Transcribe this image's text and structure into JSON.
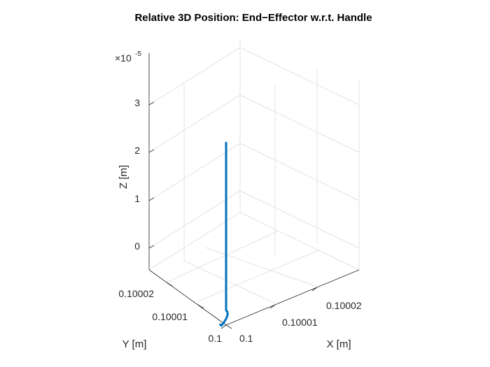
{
  "chart_data": {
    "type": "line3d",
    "title": "Relative 3D Position: End−Effector w.r.t. Handle",
    "xlabel": "X [m]",
    "ylabel": "Y [m]",
    "zlabel": "Z [m]",
    "x_ticks": [
      "0.1",
      "0.10001",
      "0.10002"
    ],
    "y_ticks": [
      "0.1",
      "0.10001",
      "0.10002"
    ],
    "z_ticks": [
      "0",
      "1",
      "2",
      "3"
    ],
    "z_exponent_base": "×10",
    "z_exponent_power": "-5",
    "grid": true,
    "series": [
      {
        "color": "#0072BD",
        "points": [
          {
            "x": 0.1,
            "y": 0.1,
            "z": 3.5e-05
          },
          {
            "x": 0.1,
            "y": 0.1,
            "z": 0.0
          },
          {
            "x": 0.1000004,
            "y": 0.1000002,
            "z": -5e-07
          },
          {
            "x": 0.1000008,
            "y": 0.1000008,
            "z": -1.5e-06
          },
          {
            "x": 0.1000009,
            "y": 0.1000014,
            "z": -2.5e-06
          },
          {
            "x": 0.1000006,
            "y": 0.1000019,
            "z": -3.5e-06
          },
          {
            "x": 0.1000001,
            "y": 0.100002,
            "z": -4e-06
          },
          {
            "x": 0.0999997,
            "y": 0.1000017,
            "z": -3.5e-06
          }
        ]
      }
    ]
  }
}
